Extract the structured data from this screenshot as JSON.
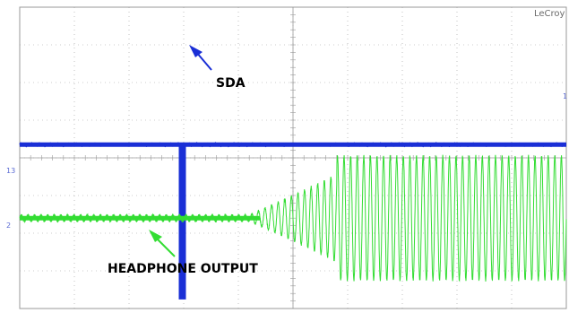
{
  "instrument": {
    "brand": "LeCroy"
  },
  "channel_markers": {
    "ch1": "1",
    "ch2": "2",
    "ch3": "13"
  },
  "colors": {
    "sda": "#1a2fd6",
    "headphone": "#33dd33",
    "grid": "#9a9a9a",
    "annotation_arrow_sda": "#1a2fd6",
    "annotation_arrow_headphone": "#33dd33"
  },
  "chart_data": {
    "type": "line",
    "title": "",
    "xlabel": "",
    "ylabel": "",
    "grid": true,
    "divisions": {
      "x": 10,
      "y": 8
    },
    "series": [
      {
        "name": "SDA",
        "x": [
          0,
          2.95,
          2.95,
          3.0,
          3.0,
          10
        ],
        "y": [
          0.35,
          0.35,
          -3.7,
          -3.7,
          0.35,
          0.35
        ]
      },
      {
        "name": "HEADPHONE OUTPUT",
        "envelope_x": [
          0,
          4.2,
          5.0,
          6.0,
          5.8,
          10
        ],
        "envelope_amplitude": [
          0.08,
          0.08,
          0.6,
          1.3,
          1.65,
          1.65
        ],
        "offset": -1.6
      }
    ],
    "annotations": [
      {
        "text": "SDA",
        "points_to": "SDA"
      },
      {
        "text": "HEADPHONE OUTPUT",
        "points_to": "HEADPHONE OUTPUT"
      }
    ]
  }
}
